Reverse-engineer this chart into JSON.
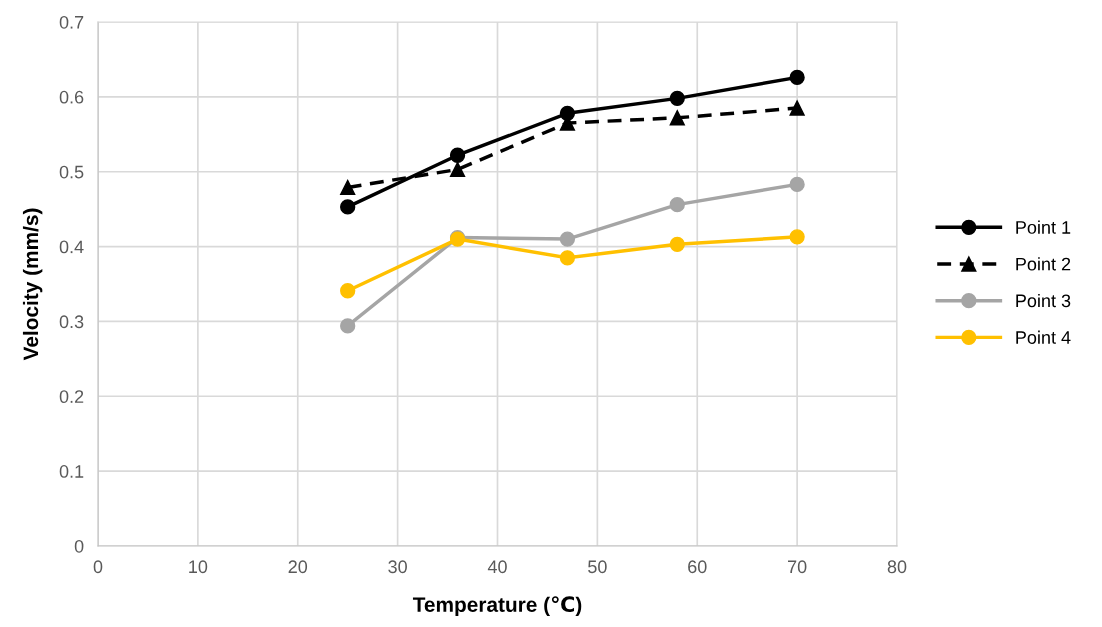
{
  "chart_data": {
    "type": "line",
    "xlabel": "Temperature (℃)",
    "ylabel": "Velocity (mm/s)",
    "x": [
      25,
      36,
      47,
      58,
      70
    ],
    "series": [
      {
        "name": "Point 1",
        "color": "#000000",
        "marker": "circle",
        "line_style": "solid",
        "values": [
          0.453,
          0.522,
          0.578,
          0.598,
          0.626
        ]
      },
      {
        "name": "Point 2",
        "color": "#000000",
        "marker": "triangle",
        "line_style": "dashed",
        "values": [
          0.479,
          0.503,
          0.565,
          0.572,
          0.585
        ]
      },
      {
        "name": "Point 3",
        "color": "#a5a5a5",
        "marker": "circle",
        "line_style": "solid",
        "values": [
          0.294,
          0.412,
          0.41,
          0.456,
          0.483
        ]
      },
      {
        "name": "Point 4",
        "color": "#ffc000",
        "marker": "circle",
        "line_style": "solid",
        "values": [
          0.341,
          0.41,
          0.385,
          0.403,
          0.413
        ]
      }
    ],
    "xlim": [
      0,
      80
    ],
    "xticks": [
      0,
      10,
      20,
      30,
      40,
      50,
      60,
      70,
      80
    ],
    "ylim": [
      0,
      0.7
    ],
    "yticks": [
      0,
      0.1,
      0.2,
      0.3,
      0.4,
      0.5,
      0.6,
      0.7
    ],
    "grid": true,
    "legend": "right"
  }
}
